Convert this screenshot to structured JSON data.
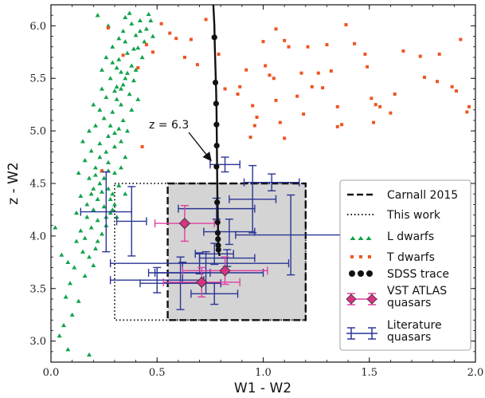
{
  "chart_data": {
    "type": "scatter",
    "xlabel": "W1 - W2",
    "ylabel": "z - W2",
    "xlim": [
      0.0,
      2.0
    ],
    "ylim": [
      2.8,
      6.2
    ],
    "xticks": [
      "0.0",
      "0.5",
      "1.0",
      "1.5",
      "2.0"
    ],
    "yticks": [
      "3.0",
      "3.5",
      "4.0",
      "4.5",
      "5.0",
      "5.5",
      "6.0"
    ],
    "grid": false,
    "legend_position": "bottom-right",
    "legend": [
      "Carnall 2015",
      "This work",
      "L dwarfs",
      "T dwarfs",
      "SDSS trace",
      "VST ATLAS\nquasars",
      "Literature\nquasars"
    ],
    "annotation": {
      "text": "z = 6.3",
      "x": 0.76,
      "y": 4.67
    },
    "regions": {
      "carnall_2015": {
        "x": [
          0.55,
          1.2
        ],
        "y": [
          3.2,
          4.5
        ]
      },
      "this_work": {
        "x": [
          0.3,
          1.2
        ],
        "y": [
          3.2,
          4.5
        ]
      }
    },
    "colors": {
      "l_dwarfs": "#11a34a",
      "t_dwarfs": "#ee5522",
      "sdss_trace": "#111111",
      "vst_quasars": "#d63384",
      "vst_quasars_errors": "#e040a0",
      "literature_quasars": "#2a3595",
      "region_fill": "#d4d4d4"
    },
    "series": [
      {
        "name": "T dwarfs",
        "points": [
          [
            0.27,
            5.98
          ],
          [
            0.34,
            5.72
          ],
          [
            0.41,
            5.6
          ],
          [
            0.45,
            5.82
          ],
          [
            0.48,
            5.75
          ],
          [
            0.52,
            6.02
          ],
          [
            0.56,
            5.93
          ],
          [
            0.59,
            5.88
          ],
          [
            0.63,
            5.7
          ],
          [
            0.66,
            5.87
          ],
          [
            0.69,
            5.63
          ],
          [
            0.73,
            6.06
          ],
          [
            0.79,
            5.73
          ],
          [
            0.82,
            5.4
          ],
          [
            0.88,
            5.35
          ],
          [
            0.89,
            5.42
          ],
          [
            0.92,
            5.58
          ],
          [
            0.94,
            4.94
          ],
          [
            0.95,
            5.24
          ],
          [
            0.96,
            5.05
          ],
          [
            0.97,
            5.13
          ],
          [
            1.0,
            5.85
          ],
          [
            1.01,
            5.62
          ],
          [
            1.03,
            5.53
          ],
          [
            1.05,
            5.5
          ],
          [
            1.06,
            5.97
          ],
          [
            1.08,
            5.08
          ],
          [
            1.1,
            5.86
          ],
          [
            1.12,
            5.8
          ],
          [
            1.16,
            5.33
          ],
          [
            1.18,
            5.55
          ],
          [
            1.19,
            5.16
          ],
          [
            1.21,
            5.8
          ],
          [
            1.23,
            5.42
          ],
          [
            1.26,
            5.55
          ],
          [
            1.28,
            5.41
          ],
          [
            1.3,
            5.82
          ],
          [
            1.32,
            5.57
          ],
          [
            1.35,
            5.04
          ],
          [
            1.37,
            5.06
          ],
          [
            1.39,
            6.01
          ],
          [
            1.43,
            5.83
          ],
          [
            1.48,
            5.73
          ],
          [
            1.49,
            5.61
          ],
          [
            1.51,
            5.31
          ],
          [
            1.52,
            5.08
          ],
          [
            1.53,
            5.25
          ],
          [
            1.55,
            5.23
          ],
          [
            1.62,
            5.35
          ],
          [
            1.66,
            5.76
          ],
          [
            1.74,
            5.71
          ],
          [
            1.83,
            5.73
          ],
          [
            1.89,
            5.42
          ],
          [
            1.91,
            5.38
          ],
          [
            1.93,
            5.87
          ],
          [
            1.96,
            5.18
          ],
          [
            1.97,
            5.23
          ],
          [
            1.82,
            5.47
          ],
          [
            1.35,
            5.23
          ],
          [
            0.24,
            4.62
          ],
          [
            0.43,
            4.85
          ],
          [
            1.6,
            5.17
          ],
          [
            1.06,
            5.29
          ],
          [
            1.1,
            4.93
          ],
          [
            1.76,
            5.51
          ]
        ]
      },
      {
        "name": "SDSS trace",
        "line_x": [
          0.765,
          0.77,
          0.772,
          0.775,
          0.778,
          0.78,
          0.781,
          0.782,
          0.783,
          0.784,
          0.785,
          0.786,
          0.787,
          0.788,
          0.789,
          0.79,
          0.795
        ],
        "line_y": [
          6.2,
          6.0,
          5.8,
          5.6,
          5.4,
          5.2,
          5.0,
          4.8,
          4.6,
          4.4,
          4.3,
          4.2,
          4.1,
          4.0,
          3.9,
          3.85,
          3.81
        ],
        "points": [
          [
            0.77,
            5.89
          ],
          [
            0.775,
            5.46
          ],
          [
            0.778,
            5.26
          ],
          [
            0.78,
            5.06
          ],
          [
            0.781,
            4.86
          ],
          [
            0.78,
            4.66
          ],
          [
            0.783,
            4.32
          ],
          [
            0.785,
            4.13
          ],
          [
            0.786,
            4.03
          ],
          [
            0.787,
            3.97
          ],
          [
            0.788,
            3.91
          ],
          [
            0.789,
            3.87
          ]
        ]
      },
      {
        "name": "VST ATLAS quasars",
        "points": [
          {
            "x": 0.63,
            "y": 4.12,
            "xerr": 0.14,
            "yerr": 0.17
          },
          {
            "x": 0.71,
            "y": 3.56,
            "xerr": 0.18,
            "yerr": 0.14
          },
          {
            "x": 0.82,
            "y": 3.67,
            "xerr": 0.2,
            "yerr": 0.13
          }
        ]
      },
      {
        "name": "Literature quasars",
        "points": [
          {
            "x": 0.82,
            "y": 4.68,
            "xerr": 0.07,
            "yerr": 0.07
          },
          {
            "x": 1.04,
            "y": 4.51,
            "xerr": 0.13,
            "yerr": 0.08
          },
          {
            "x": 0.26,
            "y": 4.23,
            "xerr": 0.12,
            "yerr": 0.38
          },
          {
            "x": 0.38,
            "y": 4.14,
            "xerr": 0.07,
            "yerr": 0.33
          },
          {
            "x": 0.78,
            "y": 4.26,
            "xerr": 0.18,
            "yerr": 0.1
          },
          {
            "x": 0.84,
            "y": 4.04,
            "xerr": 0.12,
            "yerr": 0.12
          },
          {
            "x": 0.83,
            "y": 3.79,
            "xerr": 0.13,
            "yerr": 0.08
          },
          {
            "x": 0.95,
            "y": 4.35,
            "xerr": 0.11,
            "yerr": 0.32
          },
          {
            "x": 1.13,
            "y": 4.01,
            "xerr": 0.26,
            "yerr": 0.38
          },
          {
            "x": 0.7,
            "y": 3.74,
            "xerr": 0.42,
            "yerr": 0.1
          },
          {
            "x": 0.62,
            "y": 3.65,
            "xerr": 0.13,
            "yerr": 0.1
          },
          {
            "x": 0.77,
            "y": 3.83,
            "xerr": 0.09,
            "yerr": 0.1
          },
          {
            "x": 0.73,
            "y": 3.65,
            "xerr": 0.27,
            "yerr": 0.2
          },
          {
            "x": 0.5,
            "y": 3.58,
            "xerr": 0.22,
            "yerr": 0.12
          },
          {
            "x": 0.61,
            "y": 3.55,
            "xerr": 0.19,
            "yerr": 0.25
          },
          {
            "x": 0.77,
            "y": 3.45,
            "xerr": 0.11,
            "yerr": 0.1
          }
        ]
      },
      {
        "name": "L dwarfs",
        "points": [
          [
            0.18,
            4.55
          ],
          [
            0.2,
            4.45
          ],
          [
            0.22,
            4.35
          ],
          [
            0.25,
            4.28
          ],
          [
            0.28,
            4.22
          ],
          [
            0.31,
            4.18
          ],
          [
            0.16,
            4.72
          ],
          [
            0.19,
            4.81
          ],
          [
            0.23,
            4.88
          ],
          [
            0.27,
            4.95
          ],
          [
            0.32,
            5.02
          ],
          [
            0.21,
            5.05
          ],
          [
            0.25,
            5.12
          ],
          [
            0.29,
            5.18
          ],
          [
            0.33,
            5.25
          ],
          [
            0.26,
            5.32
          ],
          [
            0.3,
            5.38
          ],
          [
            0.34,
            5.44
          ],
          [
            0.28,
            5.5
          ],
          [
            0.33,
            5.56
          ],
          [
            0.38,
            5.62
          ],
          [
            0.32,
            5.68
          ],
          [
            0.36,
            5.74
          ],
          [
            0.41,
            5.79
          ],
          [
            0.35,
            5.85
          ],
          [
            0.4,
            5.91
          ],
          [
            0.45,
            5.97
          ],
          [
            0.42,
            6.05
          ],
          [
            0.46,
            6.11
          ],
          [
            0.35,
            6.08
          ],
          [
            0.17,
            4.18
          ],
          [
            0.14,
            4.05
          ],
          [
            0.12,
            3.95
          ],
          [
            0.15,
            3.85
          ],
          [
            0.18,
            3.8
          ],
          [
            0.11,
            3.7
          ],
          [
            0.09,
            3.55
          ],
          [
            0.07,
            3.42
          ],
          [
            0.1,
            3.25
          ],
          [
            0.06,
            3.15
          ],
          [
            0.04,
            3.05
          ],
          [
            0.08,
            2.92
          ],
          [
            0.18,
            2.87
          ],
          [
            0.13,
            3.38
          ],
          [
            0.16,
            3.62
          ],
          [
            0.2,
            3.72
          ],
          [
            0.22,
            3.95
          ],
          [
            0.24,
            4.02
          ],
          [
            0.26,
            4.1
          ],
          [
            0.29,
            4.4
          ],
          [
            0.3,
            4.6
          ],
          [
            0.27,
            4.7
          ],
          [
            0.24,
            4.62
          ],
          [
            0.21,
            4.65
          ],
          [
            0.19,
            4.4
          ],
          [
            0.23,
            4.5
          ],
          [
            0.26,
            4.8
          ],
          [
            0.3,
            4.85
          ],
          [
            0.33,
            4.9
          ],
          [
            0.36,
            5.0
          ],
          [
            0.28,
            5.05
          ],
          [
            0.23,
            5.2
          ],
          [
            0.31,
            5.3
          ],
          [
            0.37,
            5.35
          ],
          [
            0.39,
            5.48
          ],
          [
            0.24,
            5.58
          ],
          [
            0.29,
            5.65
          ],
          [
            0.34,
            5.95
          ],
          [
            0.38,
            6.02
          ],
          [
            0.44,
            5.85
          ],
          [
            0.48,
            5.9
          ],
          [
            0.43,
            5.7
          ],
          [
            0.4,
            5.58
          ],
          [
            0.35,
            5.5
          ],
          [
            0.31,
            5.42
          ],
          [
            0.27,
            4.45
          ],
          [
            0.33,
            4.65
          ],
          [
            0.35,
            4.75
          ],
          [
            0.2,
            4.25
          ],
          [
            0.17,
            4.3
          ],
          [
            0.14,
            4.38
          ],
          [
            0.22,
            4.15
          ],
          [
            0.13,
            4.6
          ],
          [
            0.25,
            4.55
          ],
          [
            0.28,
            4.35
          ],
          [
            0.3,
            4.3
          ],
          [
            0.16,
            3.98
          ],
          [
            0.19,
            4.08
          ],
          [
            0.21,
            3.88
          ],
          [
            0.12,
            4.22
          ],
          [
            0.02,
            4.08
          ],
          [
            0.05,
            3.82
          ],
          [
            0.08,
            3.75
          ],
          [
            0.22,
            6.1
          ],
          [
            0.27,
            6.0
          ],
          [
            0.32,
            5.88
          ],
          [
            0.24,
            5.4
          ],
          [
            0.2,
            5.25
          ],
          [
            0.18,
            5.0
          ],
          [
            0.15,
            4.9
          ],
          [
            0.35,
            4.4
          ],
          [
            0.32,
            4.48
          ],
          [
            0.29,
            4.25
          ],
          [
            0.26,
            4.18
          ],
          [
            0.24,
            4.42
          ],
          [
            0.21,
            4.58
          ],
          [
            0.27,
            4.62
          ],
          [
            0.23,
            4.75
          ],
          [
            0.3,
            4.98
          ],
          [
            0.34,
            5.1
          ],
          [
            0.38,
            5.2
          ],
          [
            0.41,
            5.3
          ],
          [
            0.36,
            5.55
          ],
          [
            0.31,
            5.6
          ],
          [
            0.26,
            5.7
          ],
          [
            0.29,
            5.8
          ],
          [
            0.33,
            5.4
          ],
          [
            0.39,
            5.78
          ],
          [
            0.42,
            5.95
          ],
          [
            0.47,
            6.05
          ],
          [
            0.37,
            6.12
          ]
        ]
      }
    ]
  }
}
